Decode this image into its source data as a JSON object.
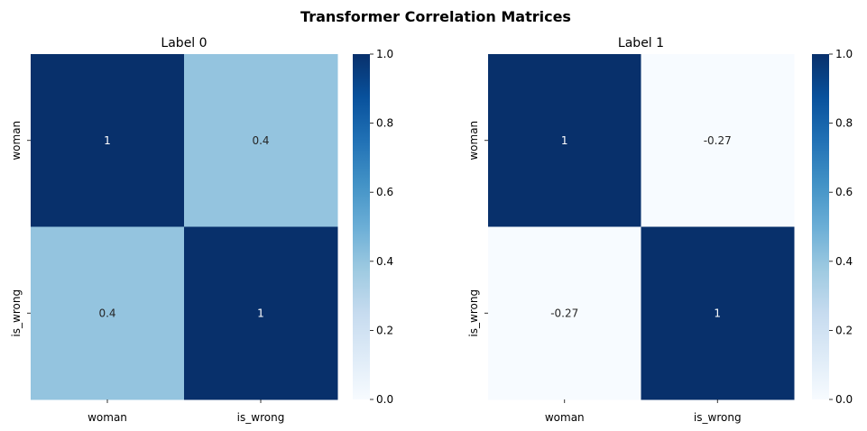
{
  "figure": {
    "title": "Transformer Correlation Matrices"
  },
  "chart_data": [
    {
      "type": "heatmap",
      "title": "Label 0",
      "x_categories": [
        "woman",
        "is_wrong"
      ],
      "y_categories": [
        "woman",
        "is_wrong"
      ],
      "values": [
        [
          1,
          0.4
        ],
        [
          0.4,
          1
        ]
      ],
      "cell_labels": [
        [
          "1",
          "0.4"
        ],
        [
          "0.4",
          "1"
        ]
      ],
      "colormap": "Blues",
      "vmin": 0,
      "vmax": 1,
      "colorbar_ticks": [
        "0.0",
        "0.2",
        "0.4",
        "0.6",
        "0.8",
        "1.0"
      ]
    },
    {
      "type": "heatmap",
      "title": "Label 1",
      "x_categories": [
        "woman",
        "is_wrong"
      ],
      "y_categories": [
        "woman",
        "is_wrong"
      ],
      "values": [
        [
          1,
          -0.27
        ],
        [
          -0.27,
          1
        ]
      ],
      "cell_labels": [
        [
          "1",
          "-0.27"
        ],
        [
          "-0.27",
          "1"
        ]
      ],
      "colormap": "Blues",
      "vmin": 0,
      "vmax": 1,
      "colorbar_ticks": [
        "0.0",
        "0.2",
        "0.4",
        "0.6",
        "0.8",
        "1.0"
      ]
    }
  ]
}
